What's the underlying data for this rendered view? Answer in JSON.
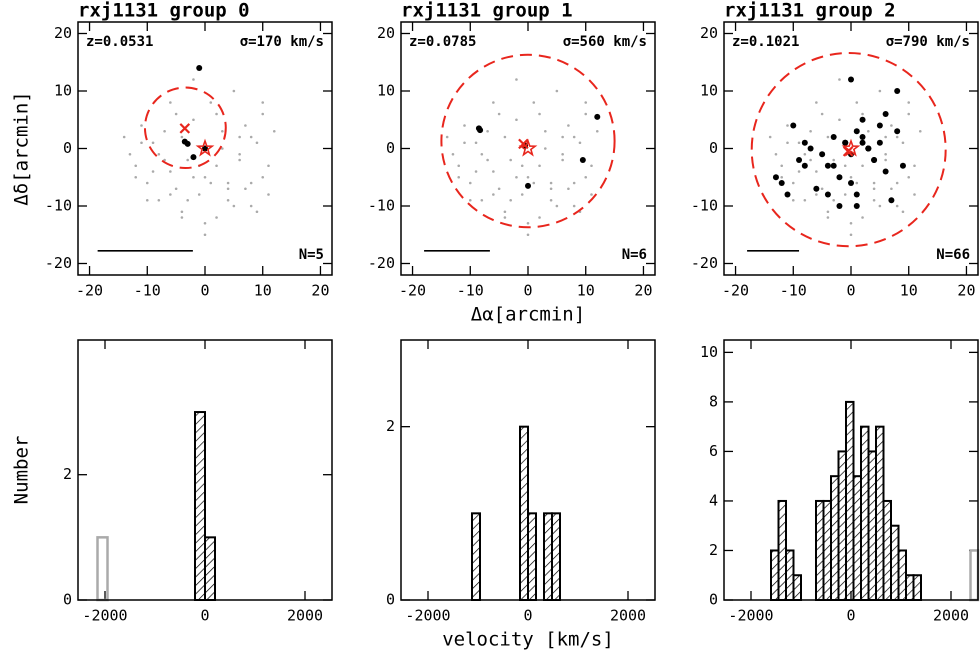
{
  "chart_data": [
    {
      "type": "scatter",
      "title": "rxj1131 group 0",
      "redshift": "z=0.0531",
      "dispersion": "σ=170 km/s",
      "count": "N=5",
      "ylabel": "Δδ[arcmin]",
      "xlim": [
        -22,
        22
      ],
      "ylim": [
        -22,
        22
      ],
      "xticks": [
        -20,
        -10,
        0,
        10,
        20
      ],
      "yticks": [
        -20,
        -10,
        0,
        10,
        20
      ],
      "field": {
        "color": "#aaaaaa",
        "x": [
          -14,
          -12,
          -11,
          -10,
          -9,
          -8,
          -7,
          -6,
          -5,
          -4,
          -3,
          -2,
          -1,
          0,
          1,
          2,
          3,
          4,
          5,
          6,
          7,
          8,
          9,
          10,
          11,
          12,
          -13,
          -11,
          -9,
          -7,
          -5,
          -3,
          -1,
          1,
          3,
          5,
          7,
          9,
          11,
          -12,
          -10,
          -8,
          -6,
          -4,
          -2,
          0,
          2,
          4,
          6,
          8,
          10,
          -6,
          -2,
          2,
          6,
          0,
          4,
          -4,
          8,
          10
        ],
        "y": [
          2,
          -3,
          4,
          -6,
          1,
          -9,
          3,
          -4,
          6,
          -11,
          -2,
          5,
          -8,
          -5,
          8,
          -12,
          3,
          -7,
          10,
          -2,
          4,
          -10,
          1,
          -5,
          -8,
          3,
          -1,
          1,
          -4,
          -2,
          -7,
          -9,
          -3,
          -6,
          0,
          -10,
          -7,
          -11,
          -3,
          -5,
          -9,
          -1,
          -8,
          2,
          -5,
          -13,
          -3,
          -9,
          -1,
          -6,
          8,
          8,
          12,
          6,
          2,
          -15,
          -6,
          -12,
          2,
          6
        ]
      },
      "members": {
        "color": "#000000",
        "x": [
          -1,
          -3.5,
          -3,
          -2,
          0
        ],
        "y": [
          14,
          1.2,
          0.8,
          -1.5,
          0
        ]
      },
      "circle": {
        "color": "#e8261d",
        "x": -3.4,
        "y": 3.6,
        "r": 7
      },
      "bcg": {
        "color": "#e8261d",
        "x": -3.5,
        "y": 3.5
      },
      "center": {
        "color": "#e8261d",
        "x": 0,
        "y": 0
      },
      "scale_bar": {
        "x1": -18.6,
        "x2": -2.1,
        "y": -17.8
      }
    },
    {
      "type": "scatter",
      "title": "rxj1131 group 1",
      "redshift": "z=0.0785",
      "dispersion": "σ=560 km/s",
      "count": "N=6",
      "xlabel": "Δα[arcmin]",
      "xlim": [
        -22,
        22
      ],
      "ylim": [
        -22,
        22
      ],
      "xticks": [
        -20,
        -10,
        0,
        10,
        20
      ],
      "yticks": [
        -20,
        -10,
        0,
        10,
        20
      ],
      "field": {
        "color": "#aaaaaa",
        "x": [
          -14,
          -12,
          -11,
          -10,
          -9,
          -8,
          -7,
          -6,
          -5,
          -4,
          -3,
          -2,
          -1,
          0,
          1,
          2,
          3,
          4,
          5,
          6,
          7,
          8,
          9,
          10,
          11,
          12,
          -13,
          -11,
          -9,
          -7,
          -5,
          -3,
          -1,
          1,
          3,
          5,
          7,
          9,
          11,
          -12,
          -10,
          -8,
          -6,
          -4,
          -2,
          0,
          2,
          4,
          6,
          8,
          10,
          -6,
          -2,
          2,
          6,
          0,
          4,
          -4,
          8,
          10
        ],
        "y": [
          2,
          -3,
          4,
          -6,
          1,
          -9,
          3,
          -4,
          6,
          -11,
          -2,
          5,
          -8,
          -5,
          8,
          -12,
          3,
          -7,
          10,
          -2,
          4,
          -10,
          1,
          -5,
          -8,
          3,
          -1,
          1,
          -4,
          -2,
          -7,
          -9,
          -3,
          -6,
          0,
          -10,
          -7,
          -11,
          -3,
          -5,
          -9,
          -1,
          -8,
          2,
          -5,
          -13,
          -3,
          -9,
          -1,
          -6,
          8,
          8,
          12,
          6,
          2,
          -15,
          -6,
          -12,
          2,
          6
        ]
      },
      "members": {
        "color": "#000000",
        "x": [
          -8.5,
          -8.3,
          12,
          9.5,
          0,
          -0.5
        ],
        "y": [
          3.5,
          3.2,
          5.5,
          -2,
          -6.5,
          0.5
        ]
      },
      "circle": {
        "color": "#e8261d",
        "x": 0,
        "y": 1.3,
        "r": 15
      },
      "bcg": {
        "color": "#e8261d",
        "x": -0.8,
        "y": 0.8
      },
      "center": {
        "color": "#e8261d",
        "x": 0,
        "y": 0
      },
      "scale_bar": {
        "x1": -18,
        "x2": -6.6,
        "y": -17.8
      }
    },
    {
      "type": "scatter",
      "title": "rxj1131 group 2",
      "redshift": "z=0.1021",
      "dispersion": "σ=790 km/s",
      "count": "N=66",
      "xlim": [
        -22,
        22
      ],
      "ylim": [
        -22,
        22
      ],
      "xticks": [
        -20,
        -10,
        0,
        10,
        20
      ],
      "yticks": [
        -20,
        -10,
        0,
        10,
        20
      ],
      "field": {
        "color": "#aaaaaa",
        "x": [
          -14,
          -12,
          -11,
          -10,
          -9,
          -8,
          -7,
          -6,
          -5,
          -4,
          -3,
          -2,
          -1,
          0,
          1,
          2,
          3,
          4,
          5,
          6,
          7,
          8,
          9,
          10,
          11,
          12,
          -13,
          -11,
          -9,
          -7,
          -5,
          -3,
          -1,
          1,
          3,
          5,
          7,
          9,
          11,
          -12,
          -10,
          -8,
          -6,
          -4,
          -2,
          0,
          2,
          4,
          6,
          8,
          10,
          -6,
          -2,
          2,
          6,
          0,
          4,
          -4,
          8,
          10
        ],
        "y": [
          2,
          -3,
          4,
          -6,
          1,
          -9,
          3,
          -4,
          6,
          -11,
          -2,
          5,
          -8,
          -5,
          8,
          -12,
          3,
          -7,
          10,
          -2,
          4,
          -10,
          1,
          -5,
          -8,
          3,
          -1,
          1,
          -4,
          -2,
          -7,
          -9,
          -3,
          -6,
          0,
          -10,
          -7,
          -11,
          -3,
          -5,
          -9,
          -1,
          -8,
          2,
          -5,
          -13,
          -3,
          -9,
          -1,
          -6,
          8,
          8,
          12,
          6,
          2,
          -15,
          -6,
          -12,
          2,
          6
        ]
      },
      "members": {
        "color": "#000000",
        "x": [
          -12,
          -11,
          -10,
          -9,
          -8,
          -7,
          -6,
          -5,
          -4,
          -3,
          -2,
          -1,
          0,
          1,
          2,
          3,
          4,
          5,
          6,
          7,
          8,
          9,
          -13,
          -8,
          -4,
          -2,
          0,
          1,
          2,
          3,
          4,
          5,
          2,
          1,
          3,
          -1,
          -3,
          6,
          8,
          0
        ],
        "y": [
          -6,
          -8,
          4,
          -2,
          -3,
          0,
          -7,
          -1,
          -8,
          2,
          -5,
          1,
          -1,
          3,
          2,
          0,
          -2,
          1,
          -4,
          -9,
          10,
          -3,
          -5,
          1,
          -3,
          -10,
          -6,
          -10,
          1,
          0,
          -2,
          4,
          5,
          -8,
          0,
          1,
          -3,
          6,
          3,
          12
        ]
      },
      "circle": {
        "color": "#e8261d",
        "x": -0.4,
        "y": -0.2,
        "r": 16.8
      },
      "bcg": {
        "color": "#e8261d",
        "x": -0.5,
        "y": -0.5
      },
      "center": {
        "color": "#e8261d",
        "x": 0,
        "y": 0
      },
      "scale_bar": {
        "x1": -18,
        "x2": -9,
        "y": -17.8
      }
    },
    {
      "type": "histogram",
      "ylabel": "Number",
      "xlim": [
        -2540,
        2540
      ],
      "ylim": [
        0,
        4.15
      ],
      "xticks": [
        -2000,
        0,
        2000
      ],
      "yticks": [
        0,
        2
      ],
      "color": "#000000",
      "bins": [
        -200,
        0,
        200
      ],
      "values": [
        3,
        1
      ],
      "outlier_color": "#aaaaaa",
      "outlier_bins": [
        -2150,
        -1950
      ],
      "outlier_values": [
        1
      ]
    },
    {
      "type": "histogram",
      "xlabel": "velocity [km/s]",
      "xlim": [
        -2540,
        2540
      ],
      "ylim": [
        0,
        3
      ],
      "xticks": [
        -2000,
        0,
        2000
      ],
      "yticks": [
        0,
        2
      ],
      "color": "#000000",
      "bins": [
        -1120,
        -960,
        -800,
        -640,
        -480,
        -320,
        -160,
        0,
        160,
        320,
        480,
        640
      ],
      "values": [
        1,
        0,
        0,
        0,
        0,
        0,
        2,
        1,
        0,
        1,
        1
      ]
    },
    {
      "type": "histogram",
      "xlim": [
        -2540,
        2540
      ],
      "ylim": [
        0,
        10.5
      ],
      "xticks": [
        -2000,
        0,
        2000
      ],
      "yticks": [
        0,
        2,
        4,
        6,
        8,
        10
      ],
      "color": "#000000",
      "bins": [
        -1600,
        -1450,
        -1300,
        -1150,
        -1000,
        -850,
        -700,
        -550,
        -400,
        -250,
        -100,
        50,
        200,
        350,
        500,
        650,
        800,
        950,
        1100,
        1250,
        1400
      ],
      "values": [
        2,
        4,
        2,
        1,
        0,
        0,
        4,
        4,
        5,
        6,
        8,
        5,
        7,
        6,
        7,
        4,
        3,
        2,
        1,
        1
      ],
      "outlier_color": "#aaaaaa",
      "outlier_bins": [
        2390,
        2540
      ],
      "outlier_values": [
        2
      ]
    }
  ]
}
